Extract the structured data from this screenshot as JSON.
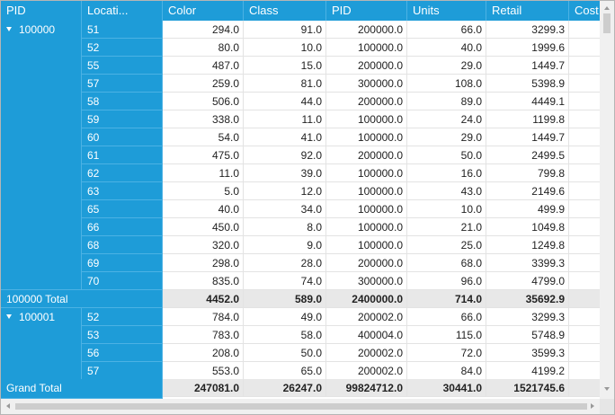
{
  "header": {
    "columns": [
      "PID",
      "Locati...",
      "Color",
      "Class",
      "PID",
      "Units",
      "Retail",
      "Cost"
    ]
  },
  "groups": [
    {
      "label": "100000",
      "rows": [
        {
          "location": "51",
          "cells": [
            "294.0",
            "91.0",
            "200000.0",
            "66.0",
            "3299.3"
          ]
        },
        {
          "location": "52",
          "cells": [
            "80.0",
            "10.0",
            "100000.0",
            "40.0",
            "1999.6"
          ]
        },
        {
          "location": "55",
          "cells": [
            "487.0",
            "15.0",
            "200000.0",
            "29.0",
            "1449.7"
          ]
        },
        {
          "location": "57",
          "cells": [
            "259.0",
            "81.0",
            "300000.0",
            "108.0",
            "5398.9"
          ]
        },
        {
          "location": "58",
          "cells": [
            "506.0",
            "44.0",
            "200000.0",
            "89.0",
            "4449.1"
          ]
        },
        {
          "location": "59",
          "cells": [
            "338.0",
            "11.0",
            "100000.0",
            "24.0",
            "1199.8"
          ]
        },
        {
          "location": "60",
          "cells": [
            "54.0",
            "41.0",
            "100000.0",
            "29.0",
            "1449.7"
          ]
        },
        {
          "location": "61",
          "cells": [
            "475.0",
            "92.0",
            "200000.0",
            "50.0",
            "2499.5"
          ]
        },
        {
          "location": "62",
          "cells": [
            "11.0",
            "39.0",
            "100000.0",
            "16.0",
            "799.8"
          ]
        },
        {
          "location": "63",
          "cells": [
            "5.0",
            "12.0",
            "100000.0",
            "43.0",
            "2149.6"
          ]
        },
        {
          "location": "65",
          "cells": [
            "40.0",
            "34.0",
            "100000.0",
            "10.0",
            "499.9"
          ]
        },
        {
          "location": "66",
          "cells": [
            "450.0",
            "8.0",
            "100000.0",
            "21.0",
            "1049.8"
          ]
        },
        {
          "location": "68",
          "cells": [
            "320.0",
            "9.0",
            "100000.0",
            "25.0",
            "1249.8"
          ]
        },
        {
          "location": "69",
          "cells": [
            "298.0",
            "28.0",
            "200000.0",
            "68.0",
            "3399.3"
          ]
        },
        {
          "location": "70",
          "cells": [
            "835.0",
            "74.0",
            "300000.0",
            "96.0",
            "4799.0"
          ]
        }
      ],
      "total": {
        "label": "100000 Total",
        "cells": [
          "4452.0",
          "589.0",
          "2400000.0",
          "714.0",
          "35692.9"
        ]
      }
    },
    {
      "label": "100001",
      "rows": [
        {
          "location": "52",
          "cells": [
            "784.0",
            "49.0",
            "200002.0",
            "66.0",
            "3299.3"
          ]
        },
        {
          "location": "53",
          "cells": [
            "783.0",
            "58.0",
            "400004.0",
            "115.0",
            "5748.9"
          ]
        },
        {
          "location": "56",
          "cells": [
            "208.0",
            "50.0",
            "200002.0",
            "72.0",
            "3599.3"
          ]
        },
        {
          "location": "57",
          "cells": [
            "553.0",
            "65.0",
            "200002.0",
            "84.0",
            "4199.2"
          ]
        }
      ]
    }
  ],
  "grand_total": {
    "label": "Grand Total",
    "cells": [
      "247081.0",
      "26247.0",
      "99824712.0",
      "30441.0",
      "1521745.6"
    ]
  }
}
